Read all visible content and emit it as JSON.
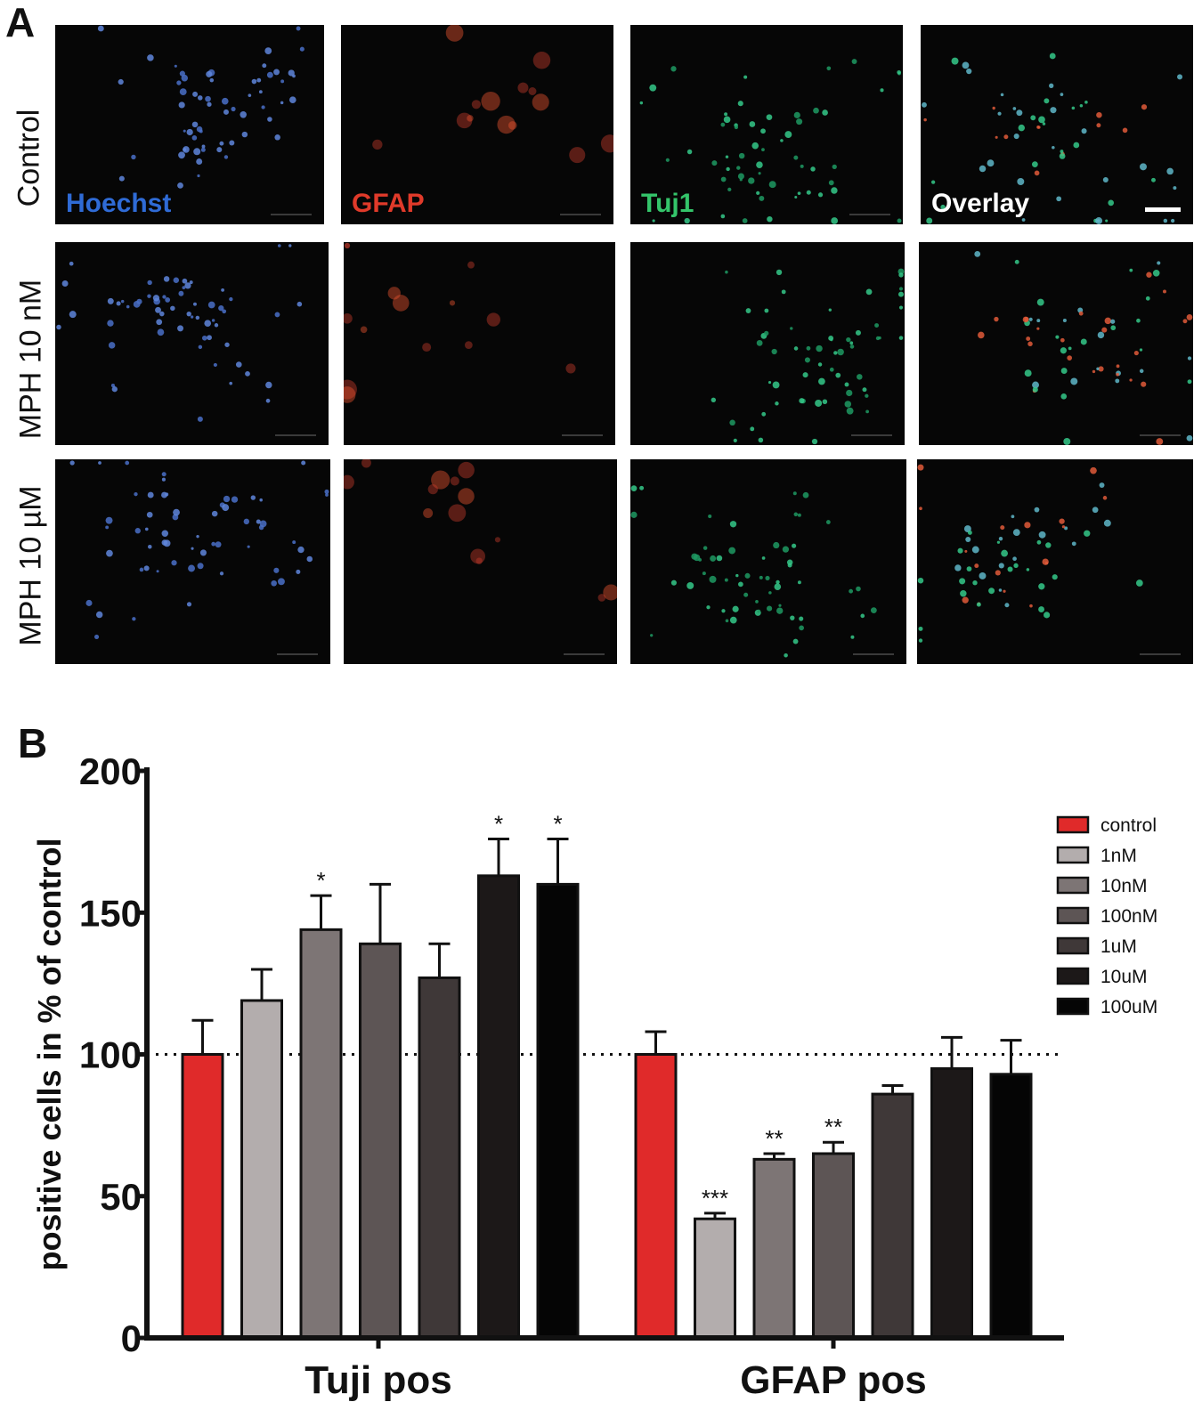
{
  "panel_a": {
    "letter": "A",
    "rows": [
      {
        "label": "Control"
      },
      {
        "label": "MPH 10 nM"
      },
      {
        "label": "MPH 10 µM"
      }
    ],
    "channel_labels": [
      "Hoechst",
      "GFAP",
      "Tuj1",
      "Overlay"
    ],
    "channel_colors": [
      "#2f6bd6",
      "#e03a2a",
      "#1fb873",
      "#ffffff"
    ]
  },
  "panel_b": {
    "letter": "B"
  },
  "chart_data": {
    "type": "bar",
    "title": "",
    "ylabel": "positive cells in % of control",
    "xlabel": "",
    "ylim": [
      0,
      200
    ],
    "yticks": [
      0,
      50,
      100,
      150,
      200
    ],
    "reference_line": 100,
    "groups": [
      "Tuji pos",
      "GFAP pos"
    ],
    "legend_position": "right",
    "series": [
      {
        "name": "control",
        "color": "#e02a2a",
        "values": [
          100,
          100
        ],
        "errors": [
          12,
          8
        ],
        "sig": [
          "",
          ""
        ]
      },
      {
        "name": "1nM",
        "color": "#b3adad",
        "values": [
          119,
          42
        ],
        "errors": [
          11,
          2
        ],
        "sig": [
          "",
          "***"
        ]
      },
      {
        "name": "10nM",
        "color": "#7d7575",
        "values": [
          144,
          63
        ],
        "errors": [
          12,
          2
        ],
        "sig": [
          "*",
          "**"
        ]
      },
      {
        "name": "100nM",
        "color": "#5d5555",
        "values": [
          139,
          65
        ],
        "errors": [
          21,
          4
        ],
        "sig": [
          "",
          "**"
        ]
      },
      {
        "name": "1uM",
        "color": "#3f3838",
        "values": [
          127,
          86
        ],
        "errors": [
          12,
          3
        ],
        "sig": [
          "",
          ""
        ]
      },
      {
        "name": "10uM",
        "color": "#1c1818",
        "values": [
          163,
          95
        ],
        "errors": [
          13,
          11
        ],
        "sig": [
          "*",
          ""
        ]
      },
      {
        "name": "100uM",
        "color": "#050505",
        "values": [
          160,
          93
        ],
        "errors": [
          16,
          12
        ],
        "sig": [
          "*",
          ""
        ]
      }
    ]
  }
}
